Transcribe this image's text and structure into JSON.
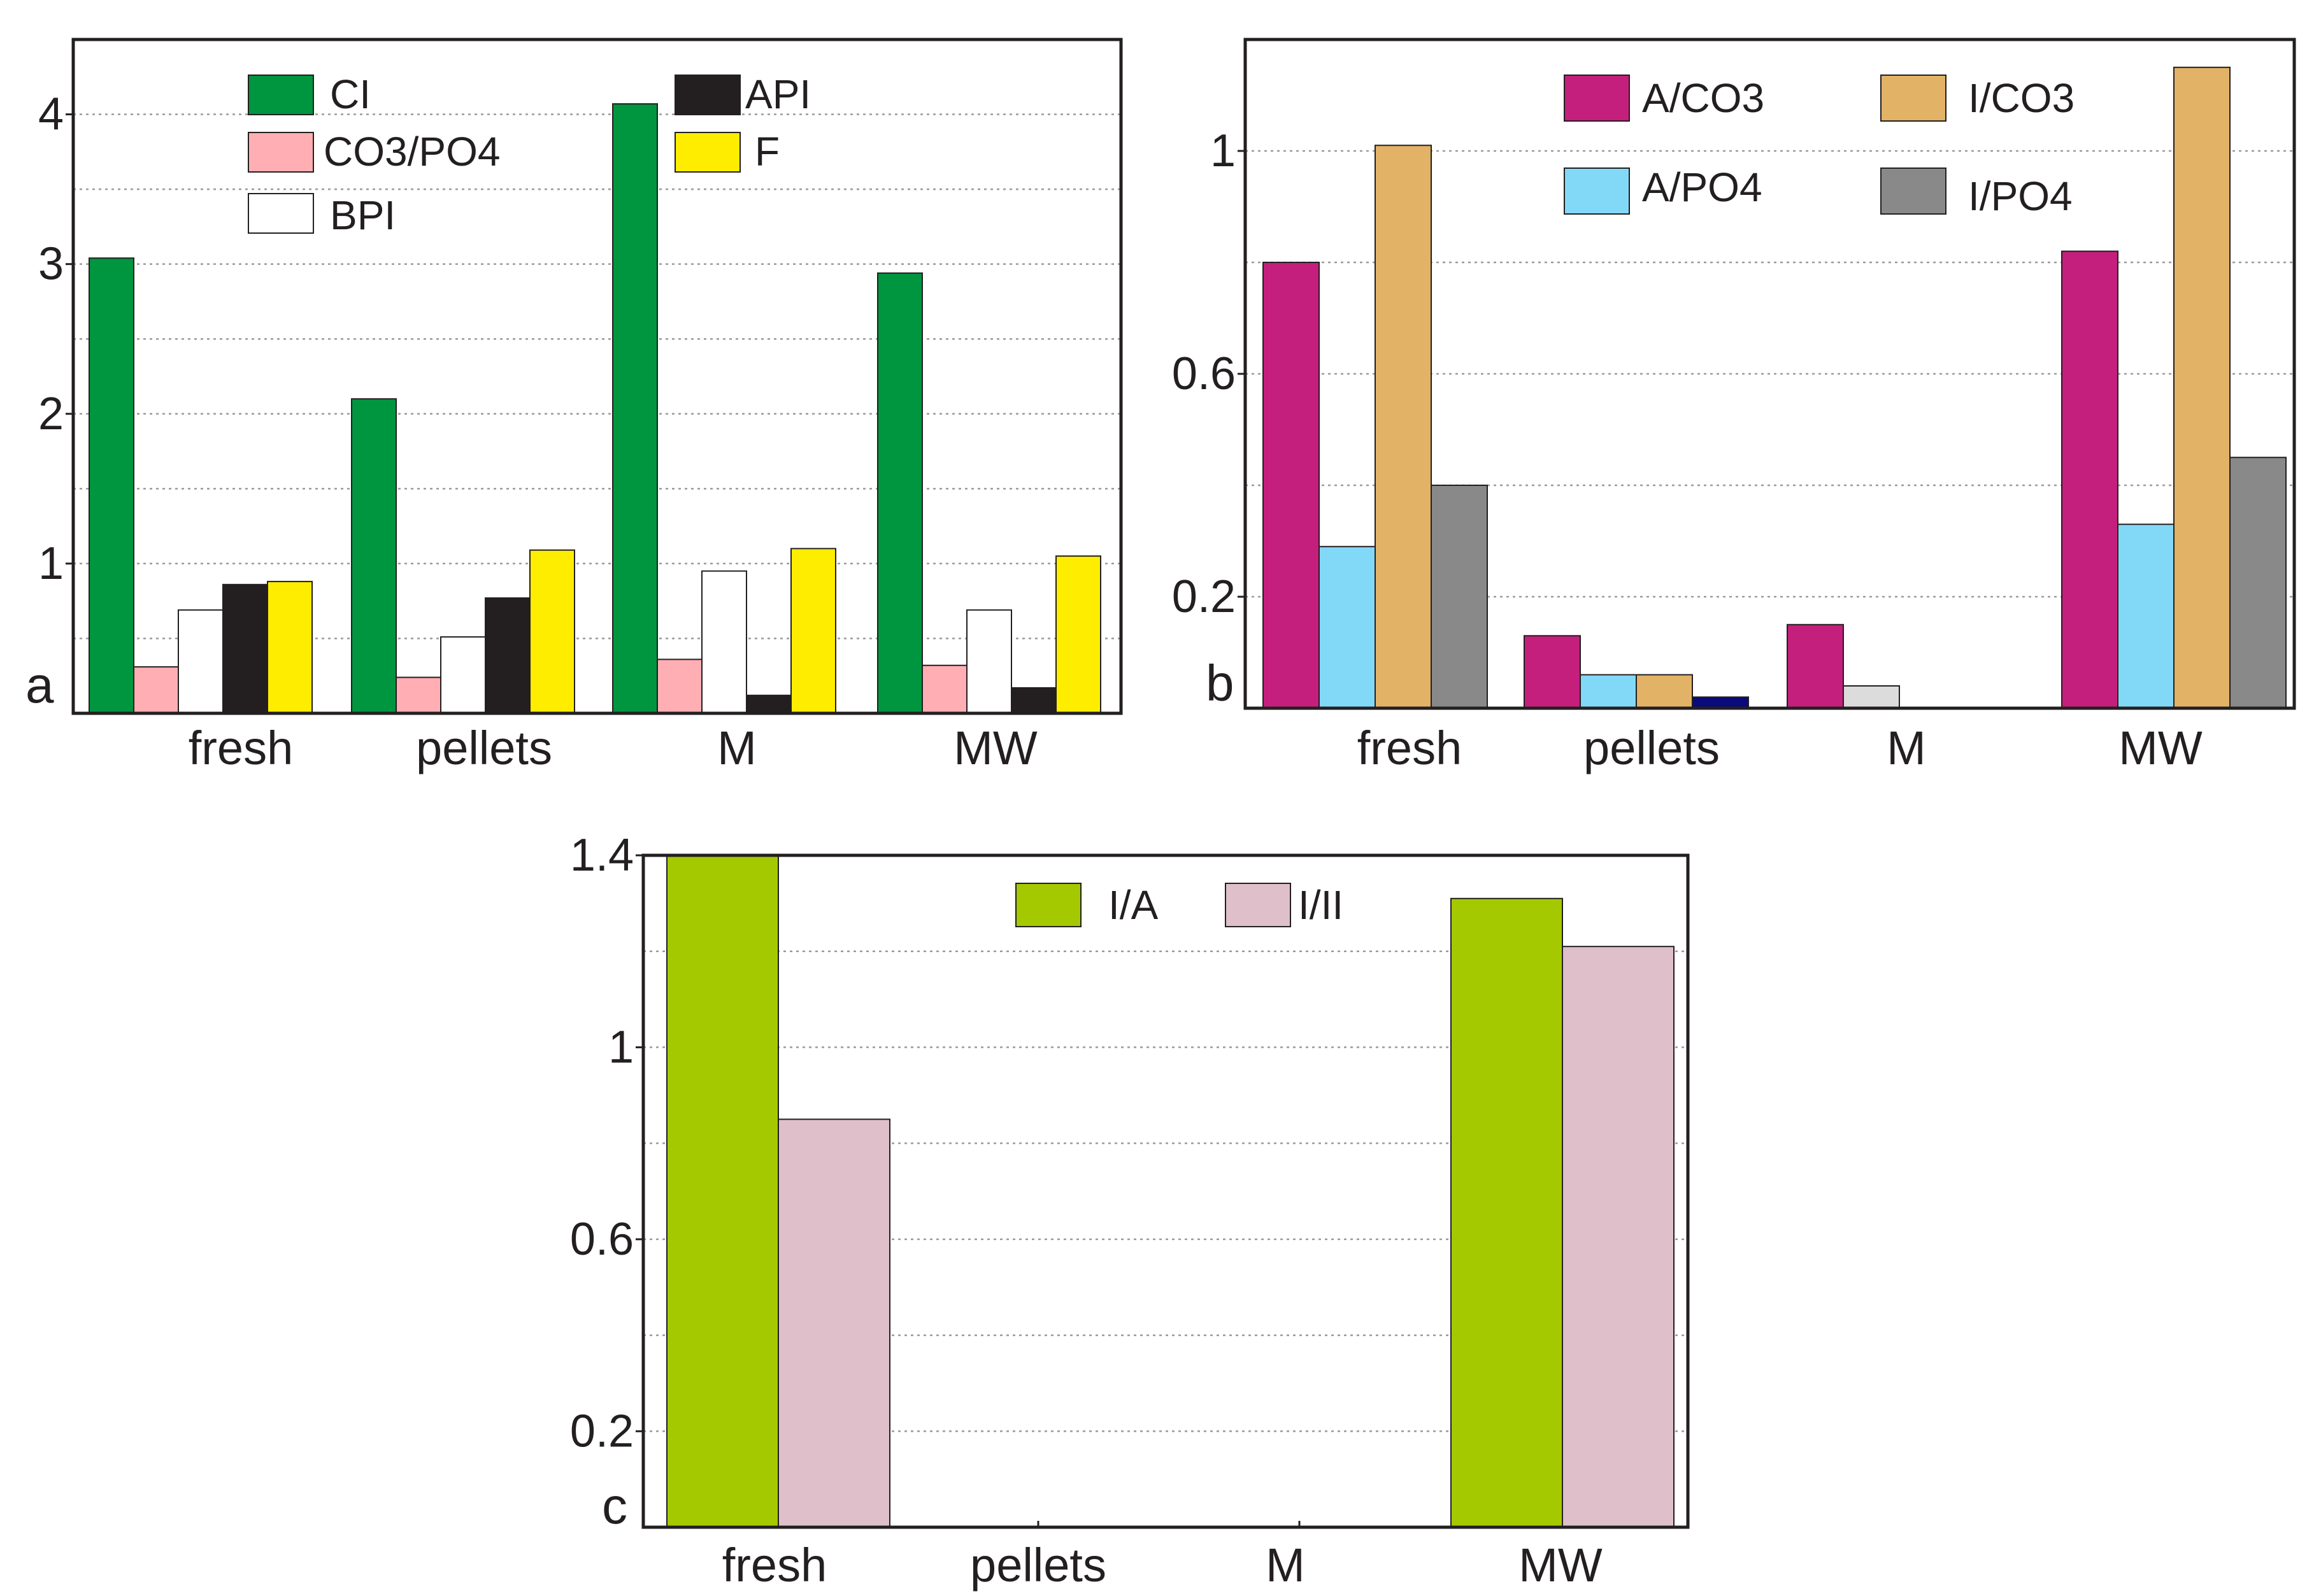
{
  "chart_data": [
    {
      "panel": "a",
      "type": "bar",
      "categories": [
        "fresh",
        "pellets",
        "M",
        "MW"
      ],
      "ylim": [
        0,
        4.5
      ],
      "yticks": [
        1,
        2,
        3,
        4
      ],
      "ytick_labels": [
        "1",
        "2",
        "3",
        "4"
      ],
      "grid": true,
      "legend": "top",
      "series": [
        {
          "name": "CI",
          "color": "#00953f",
          "values": [
            3.04,
            2.1,
            4.07,
            2.94
          ]
        },
        {
          "name": "CO3/PO4",
          "color": "#ffafb3",
          "values": [
            0.31,
            0.24,
            0.36,
            0.32
          ]
        },
        {
          "name": "BPI",
          "color": "#ffffff",
          "values": [
            0.69,
            0.51,
            0.95,
            0.69
          ]
        },
        {
          "name": "API",
          "color": "#231f20",
          "values": [
            0.86,
            0.77,
            0.12,
            0.17
          ]
        },
        {
          "name": "F",
          "color": "#ffed00",
          "values": [
            0.88,
            1.09,
            1.1,
            1.05
          ]
        }
      ]
    },
    {
      "panel": "b",
      "type": "bar",
      "categories": [
        "fresh",
        "pellets",
        "M",
        "MW"
      ],
      "ylim": [
        0,
        1.2
      ],
      "yticks": [
        0.2,
        0.6,
        1.0
      ],
      "ytick_labels": [
        "0.2",
        "0.6",
        "1"
      ],
      "grid": true,
      "legend": "top",
      "series": [
        {
          "name": "A/CO3",
          "color": "#c41f7d",
          "values": [
            0.8,
            0.13,
            0.15,
            0.82
          ]
        },
        {
          "name": "A/PO4",
          "color": "#82d9f7",
          "values": [
            0.29,
            0.06,
            0.04,
            0.33
          ]
        },
        {
          "name": "I/CO3",
          "color": "#e2b266",
          "values": [
            1.01,
            0.06,
            0,
            1.15
          ]
        },
        {
          "name": "I/PO4",
          "color": "#898989",
          "values": [
            0.4,
            0.02,
            0,
            0.45
          ]
        }
      ],
      "pellets_last_bar_color": "#0a0a7a",
      "M_second_bar_color": "#dcdcdc"
    },
    {
      "panel": "c",
      "type": "bar",
      "categories": [
        "fresh",
        "pellets",
        "M",
        "MW"
      ],
      "ylim": [
        0,
        1.4
      ],
      "yticks": [
        0.2,
        0.6,
        1.0,
        1.4
      ],
      "ytick_labels": [
        "0.2",
        "0.6",
        "1",
        "1.4"
      ],
      "grid": true,
      "legend": "top-center",
      "series": [
        {
          "name": "I/A",
          "color": "#a4c900",
          "values": [
            1.4,
            0,
            0,
            1.31
          ]
        },
        {
          "name": "I/II",
          "color": "#dfbfca",
          "values": [
            0.85,
            0,
            0,
            1.21
          ]
        }
      ]
    }
  ]
}
